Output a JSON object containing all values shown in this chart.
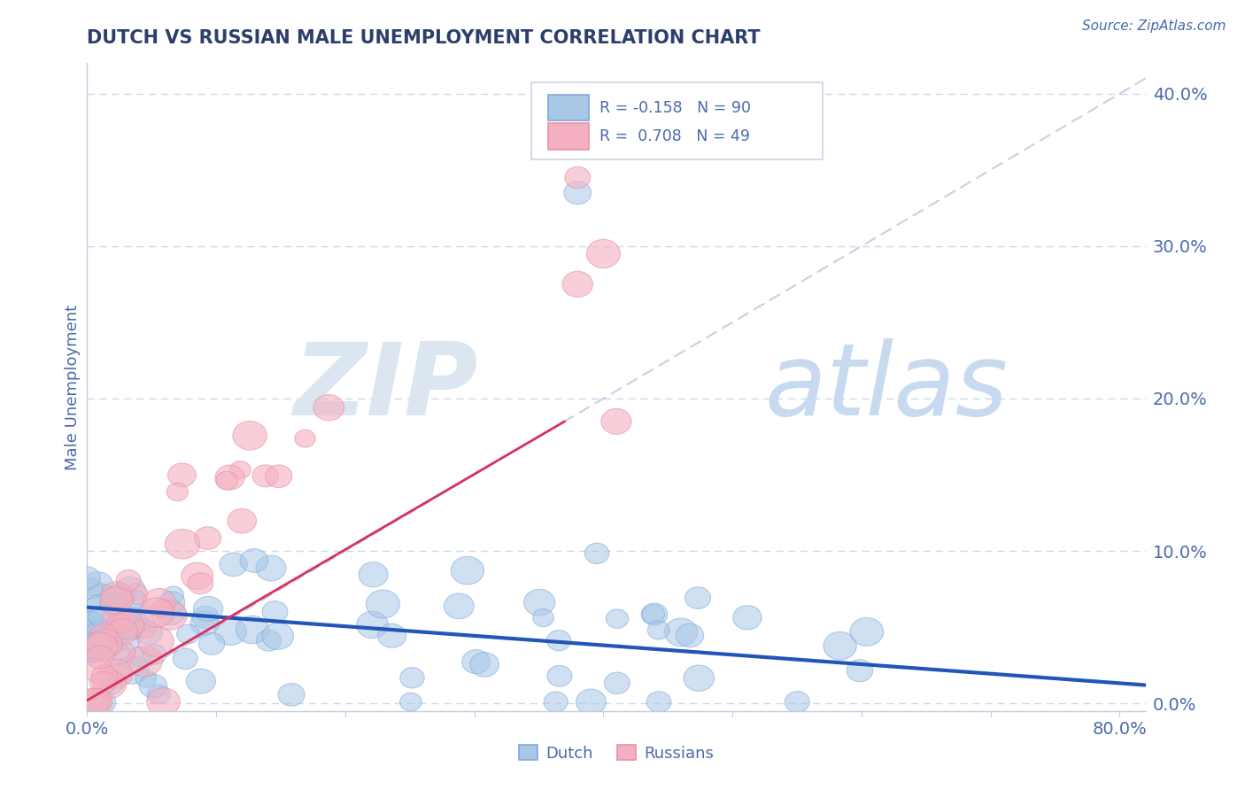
{
  "title": "DUTCH VS RUSSIAN MALE UNEMPLOYMENT CORRELATION CHART",
  "source_text": "Source: ZipAtlas.com",
  "ylabel": "Male Unemployment",
  "xlim": [
    0.0,
    0.82
  ],
  "ylim": [
    -0.005,
    0.42
  ],
  "yticks_right": [
    0.0,
    0.1,
    0.2,
    0.3,
    0.4
  ],
  "ytick_labels_right": [
    "0.0%",
    "10.0%",
    "20.0%",
    "30.0%",
    "40.0%"
  ],
  "grid_color": "#c8d4e8",
  "background_color": "#ffffff",
  "dutch_color": "#a8c8e8",
  "russian_color": "#f4b0c0",
  "dutch_edge_color": "#80a8d8",
  "russian_edge_color": "#e890a8",
  "dutch_line_color": "#2255b8",
  "russian_line_color": "#d83060",
  "diag_line_color": "#c0cce0",
  "title_color": "#2c3e6b",
  "axis_label_color": "#4a6aaa",
  "legend_text_color": "#4a6aaa",
  "watermark_zip_color": "#dce6f0",
  "watermark_atlas_color": "#c8daf0",
  "R_dutch": -0.158,
  "N_dutch": 90,
  "R_russian": 0.708,
  "N_russian": 49,
  "dutch_seed": 42,
  "russian_seed": 99
}
